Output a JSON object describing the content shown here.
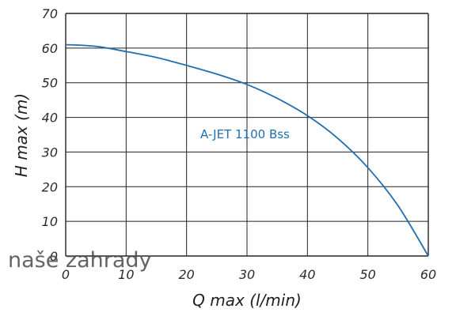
{
  "chart_data": {
    "type": "line",
    "title": "",
    "xlabel": "Q max (l/min)",
    "ylabel": "H max (m)",
    "xlim": [
      0,
      60
    ],
    "ylim": [
      0,
      70
    ],
    "x_ticks": [
      0,
      10,
      20,
      30,
      40,
      50,
      60
    ],
    "y_ticks": [
      0,
      10,
      20,
      30,
      40,
      50,
      60,
      70
    ],
    "grid": true,
    "series": [
      {
        "name": "A-JET 1100 Bss",
        "color": "#1f6fb0",
        "x": [
          0,
          5,
          10,
          15,
          20,
          25,
          30,
          35,
          40,
          45,
          50,
          55,
          60
        ],
        "y": [
          61,
          60.5,
          59,
          57.3,
          55,
          52.5,
          49.5,
          45.5,
          40.5,
          34,
          25.5,
          14.5,
          0
        ]
      }
    ]
  },
  "watermark": "naše zahrady"
}
